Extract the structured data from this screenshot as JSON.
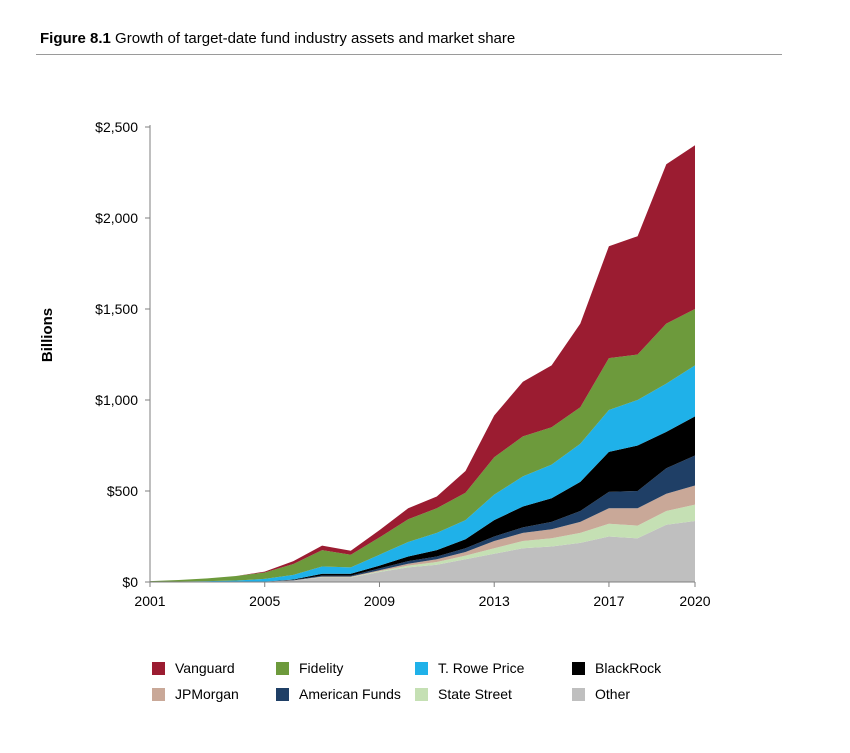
{
  "figure": {
    "label": "Figure 8.1",
    "caption": "Growth of target-date fund industry assets and market share"
  },
  "chart_data": {
    "type": "area",
    "stacked": true,
    "title": "Figure 8.1 Growth of target-date fund industry assets and market share",
    "xlabel": "",
    "ylabel": "Billions",
    "xlim": [
      2001,
      2020
    ],
    "ylim": [
      0,
      2500
    ],
    "x_ticks": [
      2001,
      2005,
      2009,
      2013,
      2017,
      2020
    ],
    "y_ticks": [
      0,
      500,
      1000,
      1500,
      2000,
      2500
    ],
    "y_tick_labels": [
      "$0",
      "$500",
      "$1,000",
      "$1,500",
      "$2,000",
      "$2,500"
    ],
    "grid": false,
    "legend_position": "bottom",
    "x": [
      2001,
      2002,
      2003,
      2004,
      2005,
      2006,
      2007,
      2008,
      2009,
      2010,
      2011,
      2012,
      2013,
      2014,
      2015,
      2016,
      2017,
      2018,
      2019,
      2020
    ],
    "series": [
      {
        "name": "Other",
        "color": "#bfbfbf",
        "values": [
          0,
          0,
          0,
          0,
          2,
          8,
          25,
          25,
          55,
          80,
          95,
          125,
          155,
          185,
          195,
          215,
          250,
          240,
          315,
          335
        ]
      },
      {
        "name": "State Street",
        "color": "#c5e0b4",
        "values": [
          0,
          0,
          0,
          0,
          0,
          0,
          2,
          2,
          5,
          10,
          15,
          20,
          30,
          40,
          45,
          55,
          70,
          70,
          75,
          90
        ]
      },
      {
        "name": "JPMorgan",
        "color": "#c9a898",
        "values": [
          0,
          0,
          0,
          0,
          0,
          1,
          3,
          3,
          5,
          10,
          15,
          20,
          40,
          45,
          50,
          60,
          85,
          95,
          95,
          105
        ]
      },
      {
        "name": "American Funds",
        "color": "#1f3f66",
        "values": [
          0,
          0,
          0,
          0,
          0,
          2,
          5,
          5,
          10,
          15,
          15,
          20,
          25,
          30,
          40,
          60,
          90,
          95,
          140,
          165
        ]
      },
      {
        "name": "BlackRock",
        "color": "#000000",
        "values": [
          0,
          0,
          0,
          0,
          0,
          3,
          10,
          10,
          15,
          25,
          35,
          50,
          90,
          115,
          130,
          160,
          220,
          250,
          200,
          215
        ]
      },
      {
        "name": "T. Rowe Price",
        "color": "#1fb1e9",
        "values": [
          2,
          3,
          5,
          8,
          15,
          25,
          40,
          35,
          60,
          80,
          95,
          105,
          140,
          165,
          185,
          210,
          230,
          250,
          265,
          280
        ]
      },
      {
        "name": "Fidelity",
        "color": "#6d9a3c",
        "values": [
          3,
          8,
          15,
          25,
          35,
          60,
          90,
          70,
          95,
          125,
          135,
          150,
          205,
          220,
          205,
          200,
          285,
          250,
          330,
          310
        ]
      },
      {
        "name": "Vanguard",
        "color": "#9b1c31",
        "values": [
          0,
          0,
          0,
          0,
          5,
          16,
          25,
          22,
          40,
          60,
          65,
          120,
          230,
          300,
          340,
          460,
          615,
          650,
          875,
          900
        ]
      }
    ]
  },
  "legend": {
    "items": [
      {
        "label": "Vanguard",
        "color": "#9b1c31"
      },
      {
        "label": "Fidelity",
        "color": "#6d9a3c"
      },
      {
        "label": "T. Rowe Price",
        "color": "#1fb1e9"
      },
      {
        "label": "BlackRock",
        "color": "#000000"
      },
      {
        "label": "JPMorgan",
        "color": "#c9a898"
      },
      {
        "label": "American Funds",
        "color": "#1f3f66"
      },
      {
        "label": "State Street",
        "color": "#c5e0b4"
      },
      {
        "label": "Other",
        "color": "#bfbfbf"
      }
    ]
  }
}
